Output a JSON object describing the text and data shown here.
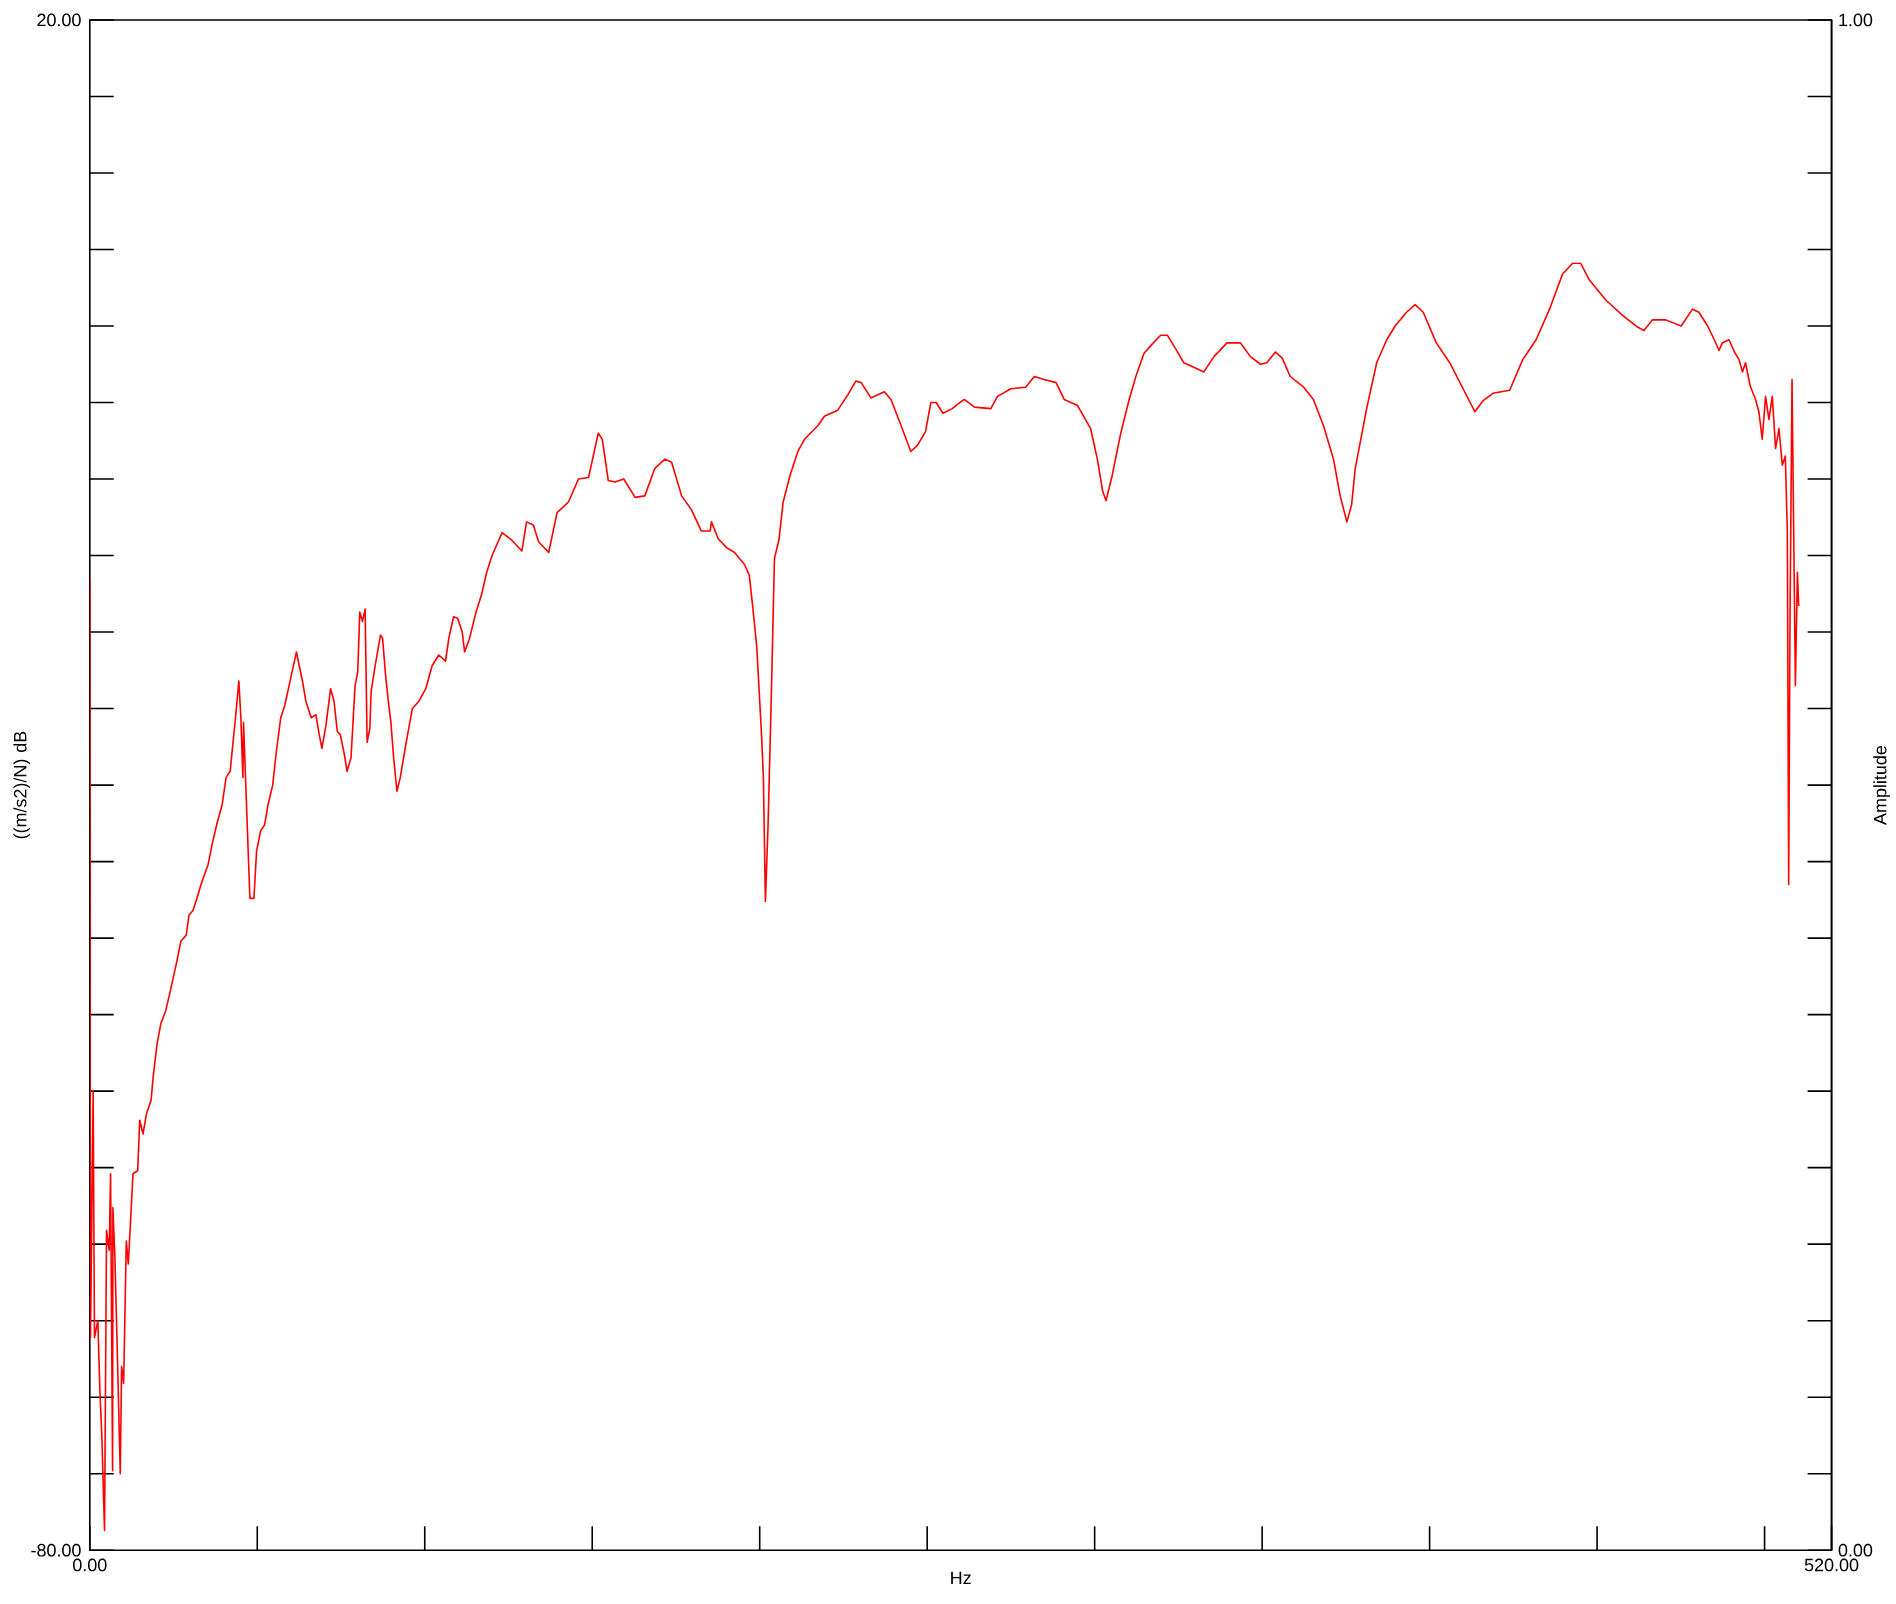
{
  "chart_data": {
    "type": "line",
    "xlabel": "Hz",
    "ylabel": "((m/s2)/N) dB",
    "y2label": "Amplitude",
    "color": "#ff0000",
    "line_style": "solid",
    "xlim": [
      0,
      520
    ],
    "ylim": [
      -80,
      20
    ],
    "y2lim": [
      0,
      1
    ],
    "xticks": [
      {
        "value": 0,
        "label": "0.00"
      },
      {
        "value": 50,
        "label": null
      },
      {
        "value": 100,
        "label": null
      },
      {
        "value": 150,
        "label": null
      },
      {
        "value": 200,
        "label": null
      },
      {
        "value": 250,
        "label": null
      },
      {
        "value": 300,
        "label": null
      },
      {
        "value": 350,
        "label": null
      },
      {
        "value": 400,
        "label": null
      },
      {
        "value": 450,
        "label": null
      },
      {
        "value": 500,
        "label": null
      },
      {
        "value": 520,
        "label": "520.00"
      }
    ],
    "yticks": [
      {
        "value": -80,
        "label": "-80.00"
      },
      {
        "value": -75,
        "label": null
      },
      {
        "value": -70,
        "label": null
      },
      {
        "value": -65,
        "label": null
      },
      {
        "value": -60,
        "label": null
      },
      {
        "value": -55,
        "label": null
      },
      {
        "value": -50,
        "label": null
      },
      {
        "value": -45,
        "label": null
      },
      {
        "value": -40,
        "label": null
      },
      {
        "value": -35,
        "label": null
      },
      {
        "value": -30,
        "label": null
      },
      {
        "value": -25,
        "label": null
      },
      {
        "value": -20,
        "label": null
      },
      {
        "value": -15,
        "label": null
      },
      {
        "value": -10,
        "label": null
      },
      {
        "value": -5,
        "label": null
      },
      {
        "value": 0,
        "label": null
      },
      {
        "value": 5,
        "label": null
      },
      {
        "value": 10,
        "label": null
      },
      {
        "value": 15,
        "label": null
      },
      {
        "value": 20,
        "label": "20.00"
      }
    ],
    "y2ticks": [
      {
        "value": 0,
        "label": "0.00"
      },
      {
        "value": 1,
        "label": "1.00"
      }
    ],
    "x": [
      0,
      0.2,
      1.0,
      1.4,
      2.4,
      3.0,
      3.6,
      4.4,
      5.0,
      5.8,
      6.2,
      6.8,
      6.9,
      7.5,
      8.3,
      9.1,
      9.5,
      10.1,
      10.9,
      11.5,
      12.9,
      14.3,
      14.9,
      15.9,
      16.9,
      18.3,
      18.9,
      20.1,
      21.2,
      22.6,
      24.0,
      26.0,
      27.2,
      28.8,
      29.6,
      30.8,
      32.0,
      33.2,
      35.3,
      36.7,
      38.1,
      39.5,
      40.7,
      41.9,
      43.5,
      44.5,
      45.1,
      45.7,
      45.9,
      47.1,
      47.8,
      49.0,
      49.8,
      51.0,
      52.2,
      53.2,
      54.6,
      55.6,
      57.0,
      58.2,
      60.2,
      61.7,
      62.7,
      63.5,
      64.5,
      66.1,
      67.5,
      68.5,
      69.3,
      70.5,
      71.9,
      72.9,
      73.9,
      74.8,
      76.0,
      76.8,
      78.0,
      79.2,
      80.0,
      80.6,
      81.4,
      82.2,
      82.8,
      83.6,
      84.0,
      85.2,
      86.8,
      87.4,
      88.3,
      89.1,
      89.9,
      90.7,
      91.7,
      92.7,
      94.3,
      96.3,
      98.3,
      100.3,
      102.2,
      104.2,
      106.2,
      107.2,
      108.6,
      109.8,
      111.2,
      111.9,
      113.4,
      115.3,
      116.9,
      118.5,
      120.1,
      123.1,
      126.0,
      129.0,
      130.4,
      132.4,
      134.0,
      137.0,
      139.5,
      142.9,
      145.9,
      148.9,
      151.8,
      153.0,
      154.8,
      156.8,
      159.4,
      162.8,
      165.7,
      168.7,
      171.7,
      173.7,
      176.7,
      179.6,
      182.6,
      185.2,
      185.6,
      187.6,
      190.2,
      192.5,
      195.5,
      196.9,
      197.9,
      199.1,
      200.5,
      201.1,
      201.7,
      202.5,
      203.5,
      204.4,
      205.8,
      207.0,
      209.0,
      211.4,
      213.4,
      217.4,
      219.3,
      223.3,
      226.3,
      228.7,
      230.3,
      233.2,
      237.2,
      239.2,
      242.2,
      245.1,
      247.1,
      249.5,
      251.1,
      252.7,
      254.7,
      257.5,
      259.1,
      261.1,
      264.1,
      269.0,
      271.0,
      275.0,
      279.4,
      282.0,
      284.9,
      288.5,
      290.9,
      294.9,
      298.8,
      300.8,
      302.4,
      303.4,
      305.2,
      307.8,
      310.3,
      312.3,
      314.7,
      317.1,
      319.7,
      321.7,
      324.2,
      326.6,
      329.6,
      332.6,
      335.6,
      339.5,
      343.5,
      346.5,
      349.5,
      351.4,
      354.0,
      356.0,
      358.4,
      362.4,
      365.3,
      368.3,
      371.3,
      373.3,
      375.3,
      376.7,
      377.8,
      381.2,
      384.2,
      387.2,
      389.7,
      393.1,
      395.7,
      398.1,
      402.0,
      406.0,
      410.0,
      413.5,
      415.9,
      418.9,
      423.9,
      427.8,
      431.8,
      435.8,
      439.7,
      442.7,
      445.1,
      447.7,
      452.6,
      457.6,
      461.6,
      464.0,
      466.5,
      470.5,
      475.1,
      478.5,
      480.4,
      483.0,
      485.0,
      486.4,
      487.4,
      489.4,
      491.0,
      492.4,
      493.4,
      494.3,
      495.7,
      497.3,
      498.3,
      499.3,
      500.3,
      501.3,
      502.3,
      503.3,
      504.3,
      505.3,
      506.2,
      506.8,
      507.2,
      507.6,
      508.2,
      509.2,
      509.8,
      510.2
    ],
    "values": [
      -16.5,
      -66.1,
      -50.0,
      -66.1,
      -65.0,
      -69.5,
      -72.6,
      -78.7,
      -59.1,
      -60.4,
      -55.4,
      -74.8,
      -57.6,
      -60.9,
      -67.8,
      -75.0,
      -68.0,
      -69.1,
      -59.8,
      -61.3,
      -55.4,
      -55.2,
      -51.9,
      -52.8,
      -51.5,
      -50.6,
      -49.1,
      -46.9,
      -45.6,
      -44.8,
      -43.5,
      -41.5,
      -40.2,
      -39.8,
      -38.5,
      -38.2,
      -37.4,
      -36.5,
      -35.2,
      -33.7,
      -32.4,
      -31.3,
      -29.5,
      -29.1,
      -25.6,
      -23.2,
      -25.6,
      -29.5,
      -25.9,
      -33.2,
      -37.4,
      -37.4,
      -34.3,
      -33.0,
      -32.6,
      -31.3,
      -30.0,
      -28.0,
      -25.6,
      -24.8,
      -22.8,
      -21.3,
      -22.4,
      -23.2,
      -24.5,
      -25.6,
      -25.4,
      -26.7,
      -27.6,
      -26.1,
      -23.7,
      -24.5,
      -26.5,
      -26.7,
      -28.0,
      -29.1,
      -28.2,
      -23.5,
      -22.6,
      -18.7,
      -19.3,
      -18.5,
      -27.2,
      -26.3,
      -23.9,
      -22.2,
      -20.2,
      -20.4,
      -22.8,
      -24.5,
      -25.9,
      -28.2,
      -30.4,
      -29.5,
      -27.4,
      -25.0,
      -24.5,
      -23.7,
      -22.2,
      -21.5,
      -21.9,
      -20.4,
      -19.0,
      -19.1,
      -20.0,
      -21.3,
      -20.4,
      -18.7,
      -17.6,
      -16.1,
      -15.0,
      -13.5,
      -14.0,
      -14.7,
      -12.8,
      -13.0,
      -14.1,
      -14.8,
      -12.2,
      -11.5,
      -10.0,
      -9.9,
      -7.0,
      -7.4,
      -10.1,
      -10.2,
      -10.0,
      -11.2,
      -11.1,
      -9.3,
      -8.7,
      -8.9,
      -11.1,
      -12.0,
      -13.4,
      -13.4,
      -12.8,
      -13.9,
      -14.5,
      -14.8,
      -15.6,
      -16.3,
      -18.3,
      -20.9,
      -26.5,
      -29.5,
      -37.6,
      -32.6,
      -23.9,
      -15.2,
      -13.9,
      -11.5,
      -9.8,
      -8.2,
      -7.4,
      -6.5,
      -5.9,
      -5.5,
      -4.5,
      -3.6,
      -3.7,
      -4.7,
      -4.3,
      -4.8,
      -6.5,
      -8.2,
      -7.8,
      -6.9,
      -5.0,
      -5.0,
      -5.7,
      -5.4,
      -5.1,
      -4.8,
      -5.3,
      -5.4,
      -4.6,
      -4.1,
      -4.0,
      -3.3,
      -3.5,
      -3.7,
      -4.8,
      -5.2,
      -6.7,
      -8.7,
      -10.8,
      -11.4,
      -9.8,
      -7.0,
      -4.8,
      -3.3,
      -1.8,
      -1.2,
      -0.6,
      -0.6,
      -1.5,
      -2.4,
      -2.7,
      -3.0,
      -2.0,
      -1.1,
      -1.1,
      -2.0,
      -2.5,
      -2.4,
      -1.7,
      -2.1,
      -3.3,
      -4.0,
      -4.8,
      -6.5,
      -8.7,
      -11.1,
      -12.8,
      -11.7,
      -9.3,
      -5.4,
      -2.4,
      -0.9,
      0.0,
      0.9,
      1.4,
      0.9,
      -1.1,
      -2.4,
      -4.1,
      -5.6,
      -4.9,
      -4.4,
      -4.2,
      -2.2,
      -0.9,
      1.1,
      3.4,
      4.1,
      4.1,
      3.0,
      1.7,
      0.7,
      0.0,
      -0.3,
      0.4,
      0.4,
      0.0,
      1.1,
      0.9,
      0.0,
      -0.9,
      -1.6,
      -1.1,
      -0.9,
      -1.7,
      -2.2,
      -3.0,
      -2.4,
      -3.9,
      -4.8,
      -5.6,
      -7.4,
      -4.6,
      -6.1,
      -4.6,
      -8.0,
      -6.7,
      -9.1,
      -8.5,
      -13.5,
      -36.5,
      -19.1,
      -3.5,
      -23.5,
      -16.1,
      -18.3
    ]
  }
}
